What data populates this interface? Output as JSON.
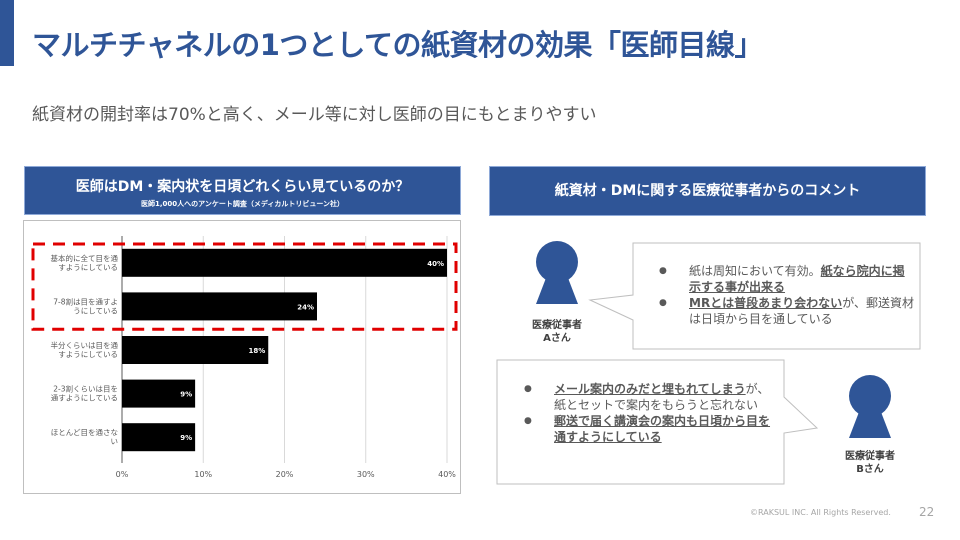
{
  "slide": {
    "title": "マルチチャネルの1つとしての紙資材の効果「医師目線」",
    "subtitle": "紙資材の開封率は70%と高く、メール等に対し医師の目にもとまりやすい",
    "page_number": "22",
    "footer": "©RAKSUL INC. All Rights Reserved.",
    "accent_color": "#2f5597",
    "highlight_color": "#e00000"
  },
  "left_panel": {
    "title": "医師はDM・案内状を日頃どれくらい見ているのか？",
    "source": "医師1,000人へのアンケート調査（メディカルトリビューン社）"
  },
  "chart_data": {
    "type": "bar",
    "orientation": "horizontal",
    "categories": [
      "基本的に全て目を通すようにしている",
      "7-8割は目を通すようにしている",
      "半分くらいは目を通すようにしている",
      "2-3割くらいは目を通すようにしている",
      "ほとんど目を通さない"
    ],
    "category_lines": [
      [
        "基本的に全て目を通",
        "すようにしている"
      ],
      [
        "7-8割は目を通すよ",
        "うにしている"
      ],
      [
        "半分くらいは目を通",
        "すようにしている"
      ],
      [
        "2-3割くらいは目を",
        "通すようにしている"
      ],
      [
        "ほとんど目を通さな",
        "い"
      ]
    ],
    "values": [
      40,
      24,
      18,
      9,
      9
    ],
    "data_labels": [
      "40%",
      "24%",
      "18%",
      "9%",
      "9%"
    ],
    "xlim": [
      0,
      40
    ],
    "xticks": [
      "0%",
      "10%",
      "20%",
      "30%",
      "40%"
    ],
    "grid": true,
    "bar_color": "#000000",
    "highlighted_categories": [
      0,
      1
    ]
  },
  "right_panel": {
    "title": "紙資材・DMに関する医療従事者からのコメント",
    "persons": [
      {
        "label_line1": "医療従事者",
        "label_line2": "Aさん",
        "comments": [
          [
            {
              "text": "紙は周知において有効。",
              "em": false
            },
            {
              "text": "紙なら院内に掲示する事が出来る",
              "em": true
            }
          ],
          [
            {
              "text": "MRとは普段あまり会わない",
              "em": true
            },
            {
              "text": "が、郵送資材は日頃から目を通している",
              "em": false
            }
          ]
        ]
      },
      {
        "label_line1": "医療従事者",
        "label_line2": "Bさん",
        "comments": [
          [
            {
              "text": "メール案内のみだと埋もれてしまう",
              "em": true
            },
            {
              "text": "が、紙とセットで案内をもらうと忘れない",
              "em": false
            }
          ],
          [
            {
              "text": "郵送で届く講演会の案内も日頃から目を通すようにしている",
              "em": true
            }
          ]
        ]
      }
    ]
  }
}
